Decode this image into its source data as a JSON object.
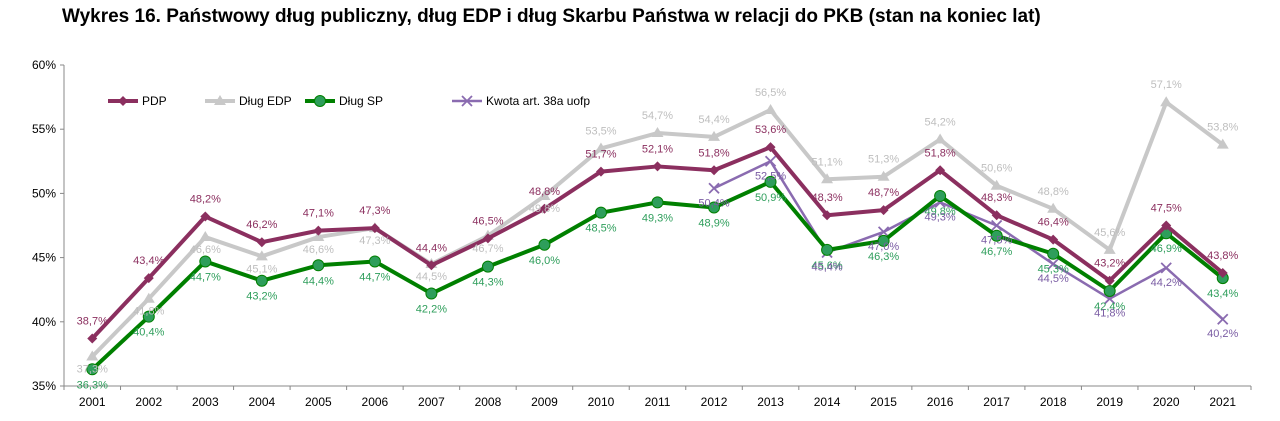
{
  "title": "Wykres 16. Państwowy dług publiczny, dług EDP i dług Skarbu Państwa w relacji do PKB (stan na koniec lat)",
  "chart_data": {
    "type": "line",
    "categories": [
      "2001",
      "2002",
      "2003",
      "2004",
      "2005",
      "2006",
      "2007",
      "2008",
      "2009",
      "2010",
      "2011",
      "2012",
      "2013",
      "2014",
      "2015",
      "2016",
      "2017",
      "2018",
      "2019",
      "2020",
      "2021"
    ],
    "y_ticks": [
      "35%",
      "40%",
      "45%",
      "50%",
      "55%",
      "60%"
    ],
    "ylim": [
      35,
      60
    ],
    "legend_position": "top-left",
    "grid": false,
    "series": [
      {
        "name": "PDP",
        "color": "#8B2F5F",
        "marker": "diamond",
        "values": [
          38.7,
          43.4,
          48.2,
          46.2,
          47.1,
          47.3,
          44.4,
          46.5,
          48.8,
          51.7,
          52.1,
          51.8,
          53.6,
          48.3,
          48.7,
          51.8,
          48.3,
          46.4,
          43.2,
          47.5,
          43.8
        ],
        "labels": [
          "38,7%",
          "43,4%",
          "48,2%",
          "46,2%",
          "47,1%",
          "47,3%",
          "44,4%",
          "46,5%",
          "48,8%",
          "51,7%",
          "52,1%",
          "51,8%",
          "53,6%",
          "48,3%",
          "48,7%",
          "51,8%",
          "48,3%",
          "46,4%",
          "43,2%",
          "47,5%",
          "43,8%"
        ]
      },
      {
        "name": "Dług EDP",
        "color": "#C8C8C8",
        "marker": "triangle",
        "values": [
          37.3,
          41.8,
          46.6,
          45.1,
          46.6,
          47.3,
          44.5,
          46.7,
          49.8,
          53.5,
          54.7,
          54.4,
          56.5,
          51.1,
          51.3,
          54.2,
          50.6,
          48.8,
          45.6,
          57.1,
          53.8
        ],
        "labels": [
          "37,3%",
          "41,8%",
          "46,6%",
          "45,1%",
          "46,6%",
          "47,3%",
          "44,5%",
          "46,7%",
          "49,8%",
          "53,5%",
          "54,7%",
          "54,4%",
          "56,5%",
          "51,1%",
          "51,3%",
          "54,2%",
          "50,6%",
          "48,8%",
          "45,6%",
          "57,1%",
          "53,8%"
        ]
      },
      {
        "name": "Dług SP",
        "color": "#008000",
        "marker": "circle",
        "values": [
          36.3,
          40.4,
          44.7,
          43.2,
          44.4,
          44.7,
          42.2,
          44.3,
          46.0,
          48.5,
          49.3,
          48.9,
          50.9,
          45.6,
          46.3,
          49.8,
          46.7,
          45.3,
          42.4,
          46.9,
          43.4
        ],
        "labels": [
          "36,3%",
          "40,4%",
          "44,7%",
          "43,2%",
          "44,4%",
          "44,7%",
          "42,2%",
          "44,3%",
          "46,0%",
          "48,5%",
          "49,3%",
          "48,9%",
          "50,9%",
          "45,6%",
          "46,3%",
          "49,8%",
          "46,7%",
          "45,3%",
          "42,4%",
          "46,9%",
          "43,4%"
        ]
      },
      {
        "name": "Kwota art. 38a uofp",
        "color": "#8A6BB0",
        "marker": "x",
        "values": [
          null,
          null,
          null,
          null,
          null,
          null,
          null,
          null,
          null,
          null,
          null,
          50.4,
          52.5,
          45.4,
          47.0,
          49.3,
          47.5,
          44.5,
          41.8,
          44.2,
          40.2
        ],
        "labels": [
          "",
          "",
          "",
          "",
          "",
          "",
          "",
          "",
          "",
          "",
          "",
          "50,4%",
          "52,5%",
          "45,4%",
          "47,0%",
          "49,3%",
          "47,5%",
          "44,5%",
          "41,8%",
          "44,2%",
          "40,2%"
        ]
      }
    ]
  }
}
